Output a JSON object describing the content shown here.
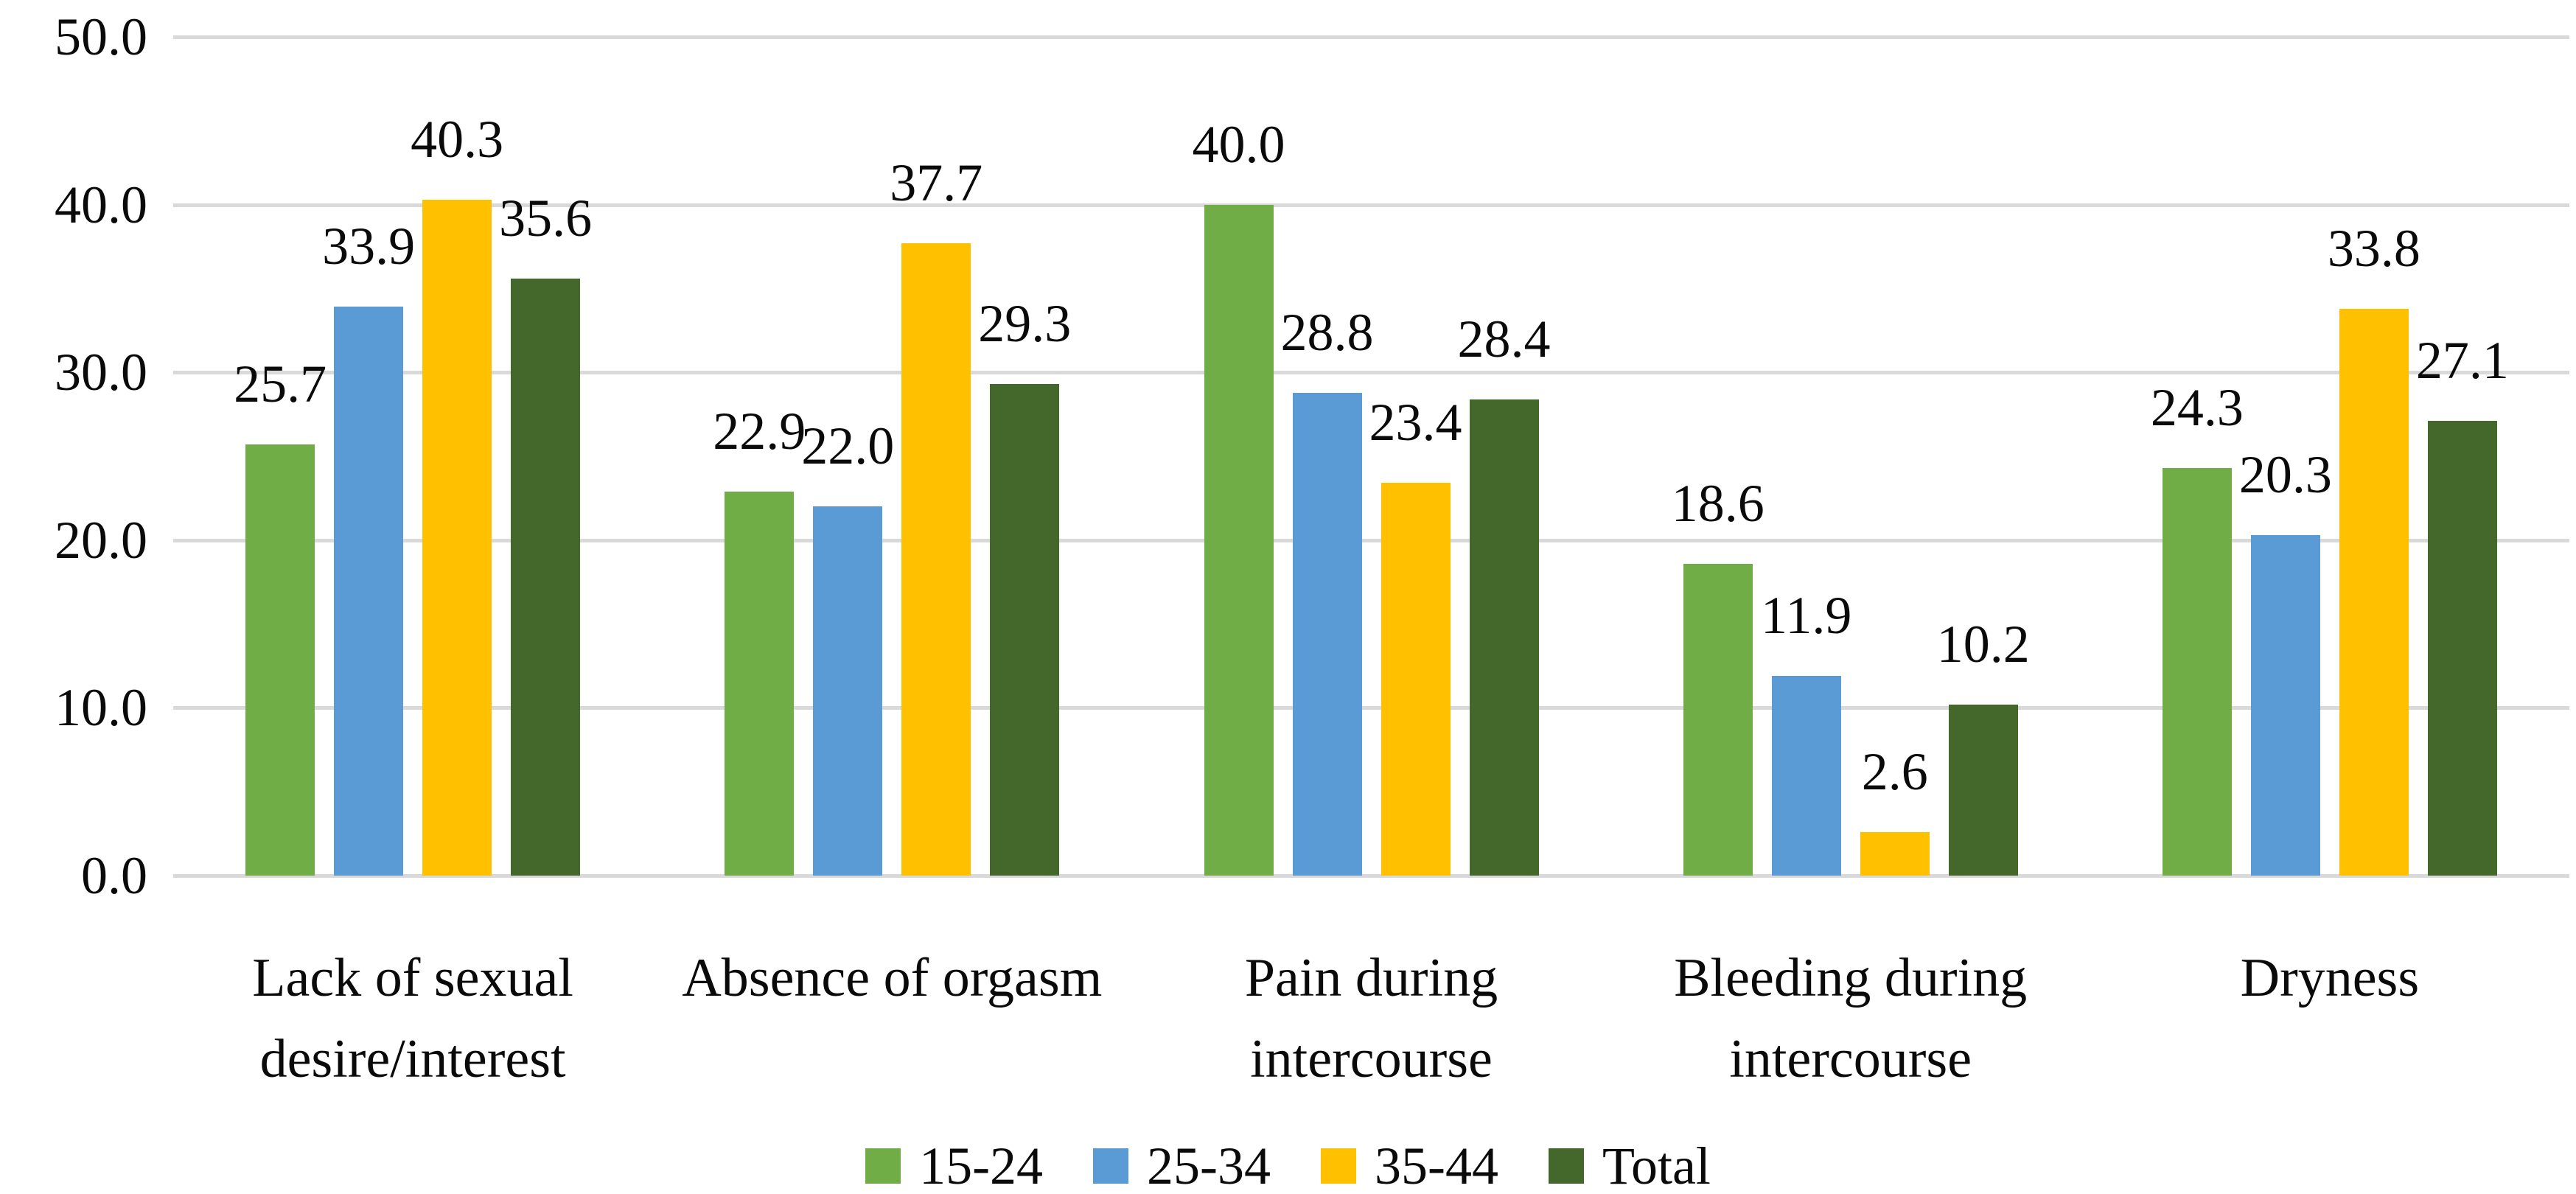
{
  "chart_data": {
    "type": "bar",
    "title": "",
    "xlabel": "",
    "ylabel": "",
    "categories": [
      "Lack of sexual\ndesire/interest",
      "Absence of orgasm",
      "Pain during\nintercourse",
      "Bleeding during\nintercourse",
      "Dryness"
    ],
    "series": [
      {
        "name": "15-24",
        "color": "#70AD47",
        "values": [
          25.7,
          22.9,
          40.0,
          18.6,
          24.3
        ],
        "labels": [
          "25.7",
          "22.9",
          "40.0",
          "18.6",
          "24.3"
        ]
      },
      {
        "name": "25-34",
        "color": "#5B9BD5",
        "values": [
          33.9,
          22.0,
          28.8,
          11.9,
          20.3
        ],
        "labels": [
          "33.9",
          "22.0",
          "28.8",
          "11.9",
          "20.3"
        ]
      },
      {
        "name": "35-44",
        "color": "#FFC000",
        "values": [
          40.3,
          37.7,
          23.4,
          2.6,
          33.8
        ],
        "labels": [
          "40.3",
          "37.7",
          "23.4",
          "2.6",
          "33.8"
        ]
      },
      {
        "name": "Total",
        "color": "#44682B",
        "values": [
          35.6,
          29.3,
          28.4,
          10.2,
          27.1
        ],
        "labels": [
          "35.6",
          "29.3",
          "28.4",
          "10.2",
          "27.1"
        ]
      }
    ],
    "y_axis": {
      "min": 0,
      "max": 50,
      "step": 10,
      "tick_labels": [
        "0.0",
        "10.0",
        "20.0",
        "30.0",
        "40.0",
        "50.0"
      ]
    },
    "grid": true,
    "gridline_color": "#D9D9D9",
    "legend_position": "bottom",
    "background_color": "#FFFFFF",
    "text_color": "#000000"
  }
}
